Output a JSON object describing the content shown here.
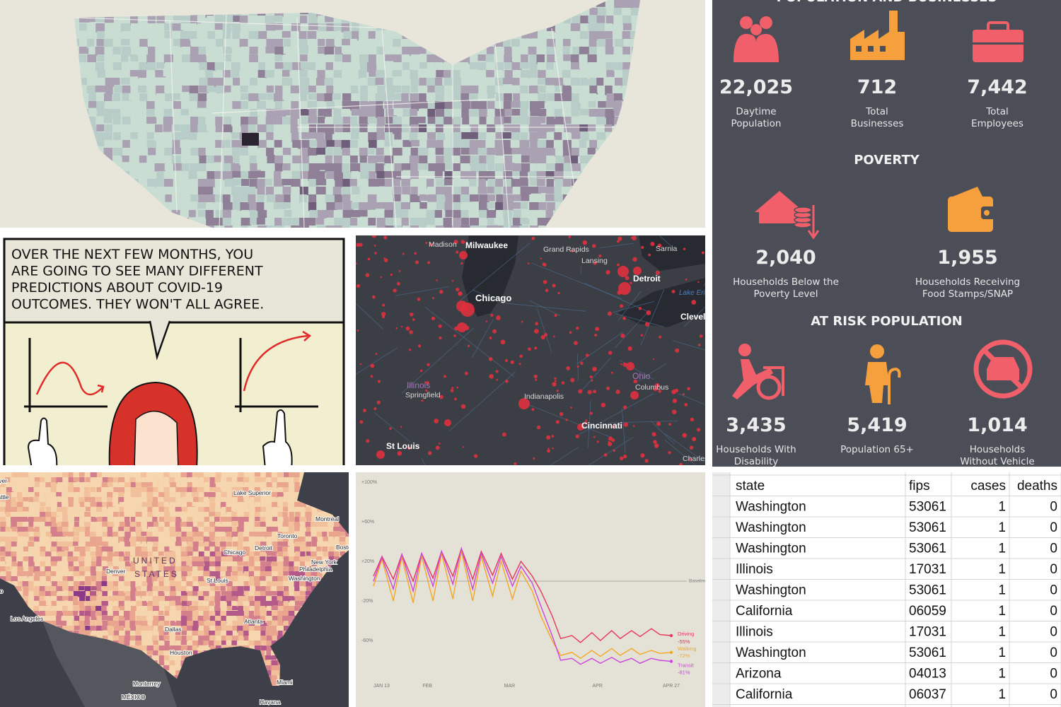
{
  "infographic": {
    "title": "POPULATION AND BUSINESSES",
    "business_stats": [
      {
        "number": "22,025",
        "label": "Daytime Population"
      },
      {
        "number": "712",
        "label": "Total Businesses"
      },
      {
        "number": "7,442",
        "label": "Total Employees"
      }
    ],
    "poverty_title": "POVERTY",
    "poverty_stats": [
      {
        "number": "2,040",
        "label": "Households Below the Poverty Level"
      },
      {
        "number": "1,955",
        "label": "Households Receiving Food Stamps/SNAP"
      }
    ],
    "at_risk_title": "AT RISK POPULATION",
    "at_risk_stats": [
      {
        "number": "3,435",
        "label": "Households With Disability"
      },
      {
        "number": "5,419",
        "label": "Population 65+"
      },
      {
        "number": "1,014",
        "label": "Households Without Vehicle"
      }
    ]
  },
  "comic": {
    "caption_lines": [
      "OVER THE NEXT FEW MONTHS, YOU",
      "ARE GOING TO SEE MANY DIFFERENT",
      "PREDICTIONS ABOUT COVID-19",
      "OUTCOMES. THEY WON'T ALL AGREE."
    ]
  },
  "midwest_map": {
    "labels": [
      "Madison",
      "Milwaukee",
      "Grand Rapids",
      "Sarnia",
      "Lansing",
      "Detroit",
      "Lake Erie",
      "Chicago",
      "Cleveland",
      "Illinois",
      "Springfield",
      "Indianapolis",
      "Ohio",
      "Columbus",
      "Cincinnati",
      "St Louis",
      "Charleston"
    ]
  },
  "us_map": {
    "labels": [
      "Vancouver",
      "Seattle",
      "Lake Superior",
      "Montreal",
      "Toronto",
      "Boston",
      "Chicago",
      "Detroit",
      "New York",
      "Philadelphia",
      "Washington",
      "Denver",
      "UNITED",
      "STATES",
      "St Louis",
      "San Francisco",
      "Los Angeles",
      "Atlanta",
      "Dallas",
      "Houston",
      "Monterrey",
      "Miami",
      "MÉXICO",
      "Havana"
    ]
  },
  "chart_data": {
    "type": "line",
    "x": [
      0,
      3,
      7,
      10,
      14,
      17,
      21,
      24,
      28,
      31,
      35,
      38,
      42,
      45,
      49,
      52,
      56,
      59,
      63,
      66,
      70,
      73,
      77,
      80,
      84,
      87,
      91,
      94,
      98,
      101,
      105
    ],
    "xlim": [
      0,
      105
    ],
    "xticks": [
      {
        "value": 0,
        "label": "JAN 13"
      },
      {
        "value": 19,
        "label": "FEB"
      },
      {
        "value": 48,
        "label": "MAR"
      },
      {
        "value": 79,
        "label": "APR"
      },
      {
        "value": 105,
        "label": "APR 27"
      }
    ],
    "ylim": [
      -100,
      100
    ],
    "yticks": [
      {
        "value": 100,
        "label": "+100%"
      },
      {
        "value": 60,
        "label": "+60%"
      },
      {
        "value": 20,
        "label": "+20%"
      },
      {
        "value": -20,
        "label": "-20%"
      },
      {
        "value": -60,
        "label": "-60%"
      }
    ],
    "baseline": {
      "value": 0,
      "label": "Baseline"
    },
    "series": [
      {
        "name": "Driving",
        "color": "#e8365a",
        "values": [
          5,
          25,
          2,
          27,
          0,
          28,
          3,
          30,
          5,
          33,
          2,
          30,
          6,
          28,
          2,
          20,
          5,
          -10,
          -35,
          -58,
          -55,
          -62,
          -52,
          -60,
          -50,
          -58,
          -50,
          -56,
          -48,
          -54,
          -55
        ],
        "value_labels": [
          null,
          null,
          null,
          null,
          null,
          null,
          null,
          null,
          null,
          null,
          null,
          null,
          null,
          null,
          null,
          null,
          null,
          null,
          null,
          null,
          null,
          null,
          null,
          null,
          null,
          null,
          null,
          null,
          null,
          null,
          "-55%"
        ]
      },
      {
        "name": "Walking",
        "color": "#f5a623",
        "values": [
          -5,
          22,
          -20,
          24,
          -22,
          25,
          -20,
          28,
          -18,
          30,
          -20,
          25,
          -15,
          20,
          -18,
          10,
          -10,
          -35,
          -60,
          -75,
          -72,
          -78,
          -70,
          -76,
          -68,
          -75,
          -68,
          -74,
          -70,
          -73,
          -72
        ],
        "value_labels": [
          null,
          null,
          null,
          null,
          null,
          null,
          null,
          null,
          null,
          null,
          null,
          null,
          null,
          null,
          null,
          null,
          null,
          null,
          null,
          null,
          null,
          null,
          null,
          null,
          null,
          null,
          null,
          null,
          null,
          null,
          "-72%"
        ]
      },
      {
        "name": "Transit",
        "color": "#cc44dd",
        "values": [
          0,
          24,
          -8,
          27,
          -10,
          28,
          -5,
          30,
          -3,
          33,
          -8,
          28,
          -2,
          25,
          -5,
          15,
          -2,
          -25,
          -55,
          -80,
          -78,
          -84,
          -78,
          -83,
          -77,
          -82,
          -78,
          -83,
          -78,
          -80,
          -81
        ],
        "value_labels": [
          null,
          null,
          null,
          null,
          null,
          null,
          null,
          null,
          null,
          null,
          null,
          null,
          null,
          null,
          null,
          null,
          null,
          null,
          null,
          null,
          null,
          null,
          null,
          null,
          null,
          null,
          null,
          null,
          null,
          null,
          "-81%"
        ]
      }
    ]
  },
  "table": {
    "header": [
      "state",
      "fips",
      "cases",
      "deaths"
    ],
    "rows": [
      [
        "Washington",
        "53061",
        "1",
        "0"
      ],
      [
        "Washington",
        "53061",
        "1",
        "0"
      ],
      [
        "Washington",
        "53061",
        "1",
        "0"
      ],
      [
        "Illinois",
        "17031",
        "1",
        "0"
      ],
      [
        "Washington",
        "53061",
        "1",
        "0"
      ],
      [
        "California",
        "06059",
        "1",
        "0"
      ],
      [
        "Illinois",
        "17031",
        "1",
        "0"
      ],
      [
        "Washington",
        "53061",
        "1",
        "0"
      ],
      [
        "Arizona",
        "04013",
        "1",
        "0"
      ],
      [
        "California",
        "06037",
        "1",
        "0"
      ]
    ]
  }
}
